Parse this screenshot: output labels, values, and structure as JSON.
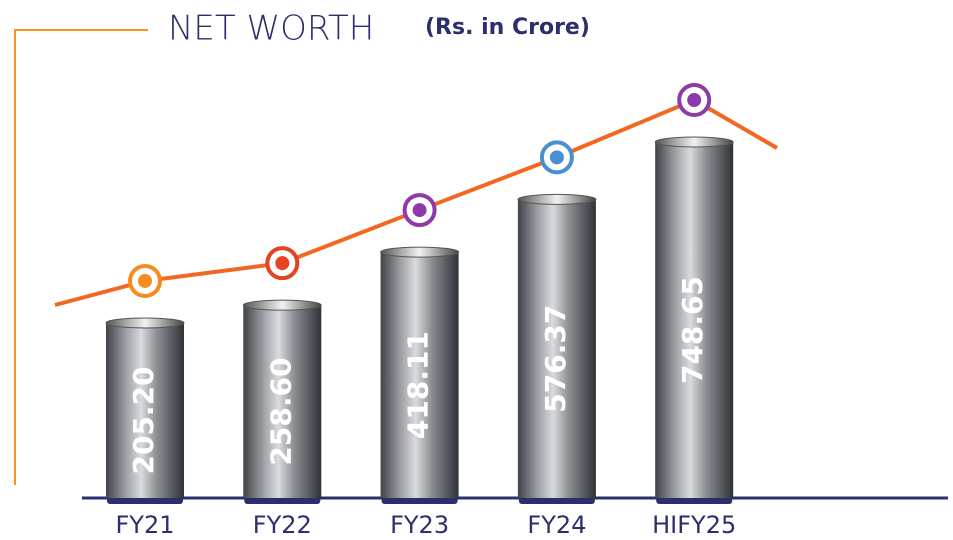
{
  "chart_data": {
    "type": "bar",
    "title": "NET WORTH",
    "subtitle": "(Rs. in Crore)",
    "categories": [
      "FY21",
      "FY22",
      "FY23",
      "FY24",
      "HIFY25"
    ],
    "values": [
      205.2,
      258.6,
      418.11,
      576.37,
      748.65
    ],
    "value_labels": [
      "205.20",
      "258.60",
      "418.11",
      "576.37",
      "748.65"
    ],
    "color": "#8a8d92",
    "line_color": "#f26722",
    "marker_colors": [
      "#f68b1f",
      "#e4451f",
      "#8e3aa8",
      "#4a8fd1",
      "#8e3aa8"
    ]
  }
}
